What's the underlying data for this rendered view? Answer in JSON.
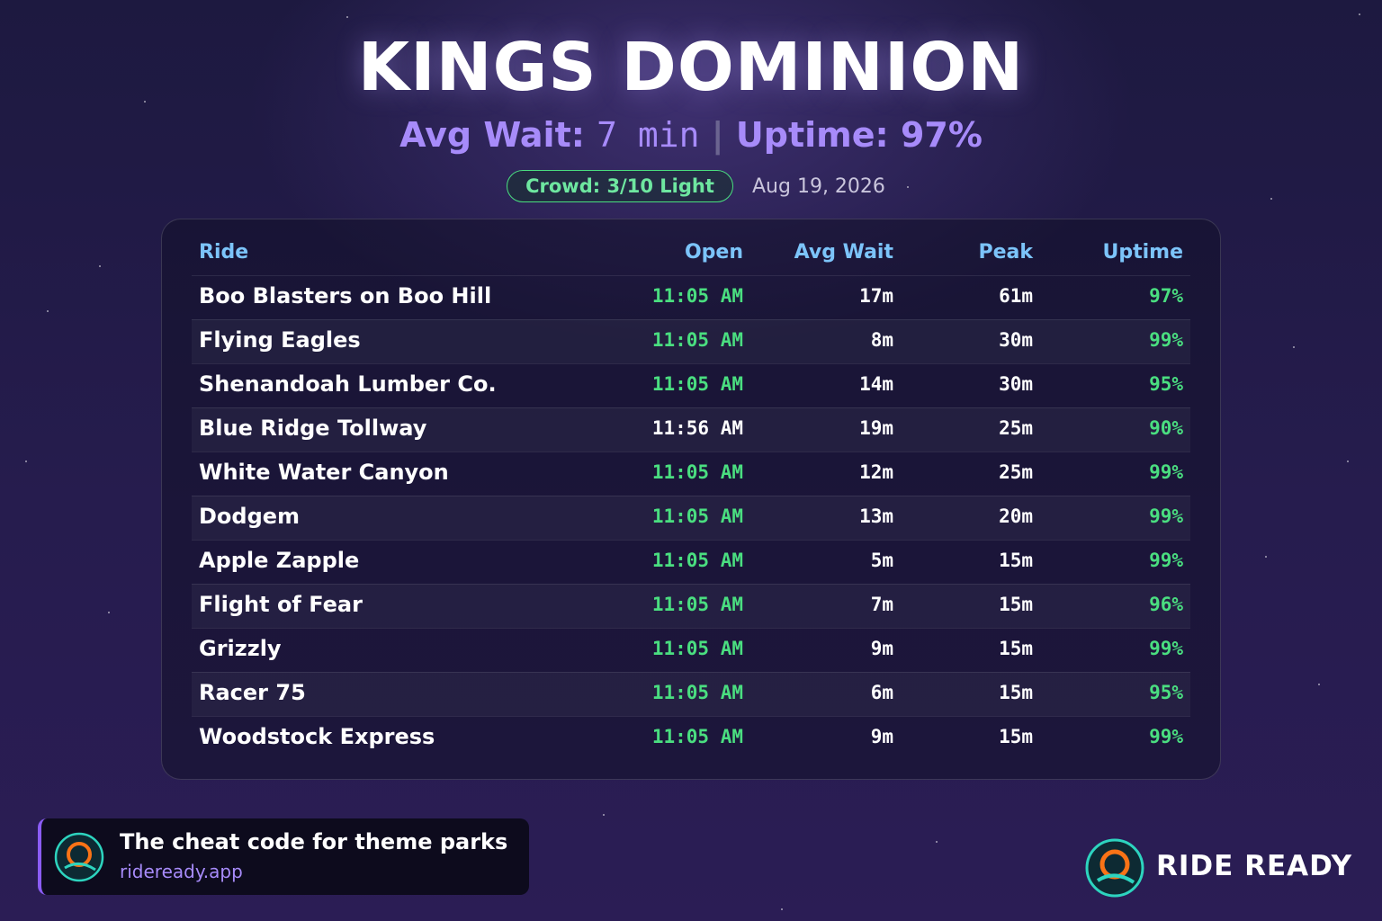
{
  "header": {
    "title": "KINGS DOMINION",
    "stats": {
      "avg_wait_label": "Avg Wait:",
      "avg_wait_value": "7 min",
      "separator": "|",
      "uptime": "Uptime: 97%"
    },
    "crowd_badge": "Crowd: 3/10 Light",
    "date": "Aug 19, 2026"
  },
  "table": {
    "columns": [
      "Ride",
      "Open",
      "Avg Wait",
      "Peak",
      "Uptime"
    ],
    "rows": [
      {
        "ride": "Boo Blasters on Boo Hill",
        "open": "11:05 AM",
        "avg_wait": "17m",
        "peak": "61m",
        "uptime": "97%",
        "open_color": "#4ade80"
      },
      {
        "ride": "Flying Eagles",
        "open": "11:05 AM",
        "avg_wait": "8m",
        "peak": "30m",
        "uptime": "99%",
        "open_color": "#4ade80"
      },
      {
        "ride": "Shenandoah Lumber Co.",
        "open": "11:05 AM",
        "avg_wait": "14m",
        "peak": "30m",
        "uptime": "95%",
        "open_color": "#4ade80"
      },
      {
        "ride": "Blue Ridge Tollway",
        "open": "11:56 AM",
        "avg_wait": "19m",
        "peak": "25m",
        "uptime": "90%",
        "open_color": "#ffffff"
      },
      {
        "ride": "White Water Canyon",
        "open": "11:05 AM",
        "avg_wait": "12m",
        "peak": "25m",
        "uptime": "99%",
        "open_color": "#4ade80"
      },
      {
        "ride": "Dodgem",
        "open": "11:05 AM",
        "avg_wait": "13m",
        "peak": "20m",
        "uptime": "99%",
        "open_color": "#4ade80"
      },
      {
        "ride": "Apple Zapple",
        "open": "11:05 AM",
        "avg_wait": "5m",
        "peak": "15m",
        "uptime": "99%",
        "open_color": "#4ade80"
      },
      {
        "ride": "Flight of Fear",
        "open": "11:05 AM",
        "avg_wait": "7m",
        "peak": "15m",
        "uptime": "96%",
        "open_color": "#4ade80"
      },
      {
        "ride": "Grizzly",
        "open": "11:05 AM",
        "avg_wait": "9m",
        "peak": "15m",
        "uptime": "99%",
        "open_color": "#4ade80"
      },
      {
        "ride": "Racer 75",
        "open": "11:05 AM",
        "avg_wait": "6m",
        "peak": "15m",
        "uptime": "95%",
        "open_color": "#4ade80"
      },
      {
        "ride": "Woodstock Express",
        "open": "11:05 AM",
        "avg_wait": "9m",
        "peak": "15m",
        "uptime": "99%",
        "open_color": "#4ade80"
      }
    ]
  },
  "footer": {
    "tagline": "The cheat code for theme parks",
    "url": "rideready.app",
    "brand": "RIDE READY"
  }
}
